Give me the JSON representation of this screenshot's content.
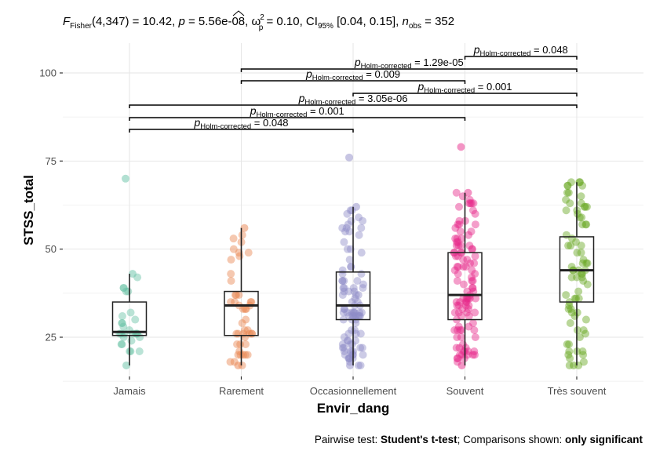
{
  "chart_data": {
    "type": "boxplot",
    "title": {
      "prefix_F": "F",
      "sub_fisher": "Fisher",
      "df": "(4,347) = 10.42, ",
      "p_label": "p",
      "p_value": " = 5.56e-08, ",
      "omega": "ω",
      "omega_sup": "2",
      "omega_sub": "p",
      "omega_value": " = 0.10, CI",
      "ci_sub": "95%",
      "ci_value": " [0.04, 0.15], ",
      "n_label": "n",
      "n_sub": "obs",
      "n_value": " = 352"
    },
    "xlabel": "Envir_dang",
    "ylabel": "STSS_total",
    "ylim": [
      12,
      110
    ],
    "yticks": [
      25,
      50,
      75,
      100
    ],
    "grid": true,
    "categories": [
      "Jamais",
      "Rarement",
      "Occasionnellement",
      "Souvent",
      "Très souvent"
    ],
    "colors": [
      "#66c2a5",
      "#e9844f",
      "#8f8bc8",
      "#e7298a",
      "#66a61e"
    ],
    "boxes": [
      {
        "category": "Jamais",
        "q1": 25.5,
        "median": 26.5,
        "q3": 35,
        "whisker_low": 17,
        "whisker_high": 43,
        "outliers": [
          70
        ]
      },
      {
        "category": "Rarement",
        "q1": 25.5,
        "median": 34,
        "q3": 38,
        "whisker_low": 17,
        "whisker_high": 56,
        "outliers": []
      },
      {
        "category": "Occasionnellement",
        "q1": 30,
        "median": 34,
        "q3": 43.5,
        "whisker_low": 17,
        "whisker_high": 62,
        "outliers": [
          76
        ]
      },
      {
        "category": "Souvent",
        "q1": 30,
        "median": 37,
        "q3": 49,
        "whisker_low": 17,
        "whisker_high": 66,
        "outliers": [
          79
        ]
      },
      {
        "category": "Très souvent",
        "q1": 35,
        "median": 44,
        "q3": 53.5,
        "whisker_low": 17,
        "whisker_high": 69,
        "outliers": []
      }
    ],
    "points_per_group": [
      27,
      45,
      95,
      110,
      75
    ],
    "comparisons": [
      {
        "from": "Jamais",
        "to": "Occasionnellement",
        "p_label": "p",
        "p_sub": "Holm-corrected",
        "p_value": " = 0.048",
        "level": 0
      },
      {
        "from": "Jamais",
        "to": "Souvent",
        "p_label": "p",
        "p_sub": "Holm-corrected",
        "p_value": " = 0.001",
        "level": 1
      },
      {
        "from": "Jamais",
        "to": "Très souvent",
        "p_label": "p",
        "p_sub": "Holm-corrected",
        "p_value": " = 3.05e-06",
        "level": 2
      },
      {
        "from": "Occasionnellement",
        "to": "Très souvent",
        "p_label": "p",
        "p_sub": "Holm-corrected",
        "p_value": " = 0.001",
        "level": 3
      },
      {
        "from": "Rarement",
        "to": "Souvent",
        "p_label": "p",
        "p_sub": "Holm-corrected",
        "p_value": " = 0.009",
        "level": 4
      },
      {
        "from": "Rarement",
        "to": "Très souvent",
        "p_label": "p",
        "p_sub": "Holm-corrected",
        "p_value": " = 1.29e-05",
        "level": 5
      },
      {
        "from": "Souvent",
        "to": "Très souvent",
        "p_label": "p",
        "p_sub": "Holm-corrected",
        "p_value": " = 0.048",
        "level": 6
      }
    ],
    "caption": {
      "part1": "Pairwise test: ",
      "part2_bold": "Student's t-test",
      "part3": "; Comparisons shown: ",
      "part4_bold": "only significant"
    }
  }
}
